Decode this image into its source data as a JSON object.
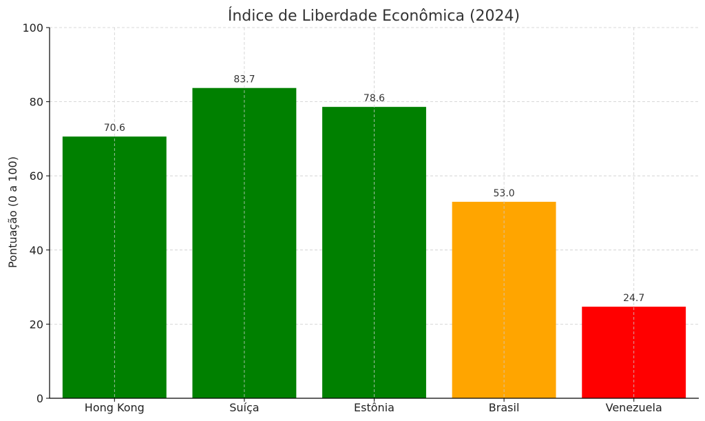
{
  "colors": {
    "green": "#008000",
    "orange": "#FFA500",
    "red": "#FF0000"
  },
  "chart_data": {
    "type": "bar",
    "title": "Índice de Liberdade Econômica (2024)",
    "xlabel": "",
    "ylabel": "Pontuação (0 a 100)",
    "categories": [
      "Hong Kong",
      "Suíça",
      "Estônia",
      "Brasil",
      "Venezuela"
    ],
    "values": [
      70.6,
      83.7,
      78.6,
      53.0,
      24.7
    ],
    "value_labels": [
      "70.6",
      "83.7",
      "78.6",
      "53.0",
      "24.7"
    ],
    "bar_colors": [
      "#008000",
      "#008000",
      "#008000",
      "#FFA500",
      "#FF0000"
    ],
    "ylim": [
      0,
      100
    ],
    "yticks": [
      0,
      20,
      40,
      60,
      80,
      100
    ],
    "grid": true,
    "legend": "none"
  }
}
